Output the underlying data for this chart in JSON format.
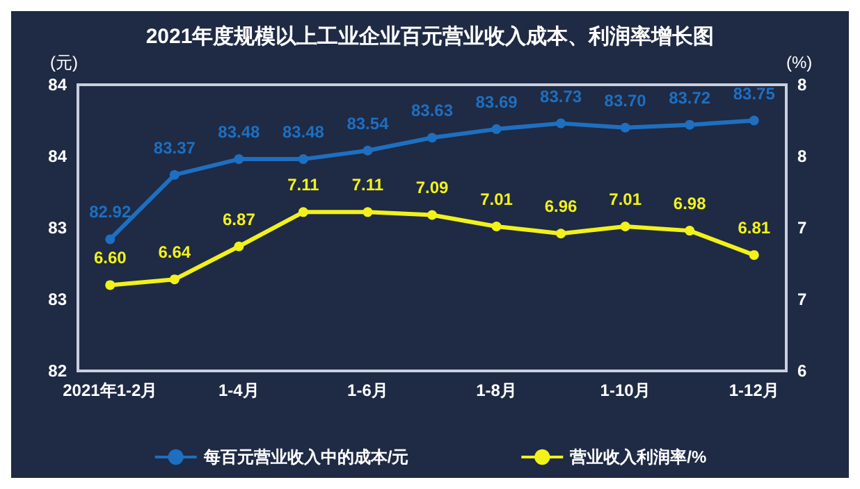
{
  "chart_data": {
    "type": "line",
    "title": "2021年度规模以上工业企业百元营业收入成本、利润率增长图",
    "ylabel": "(元)",
    "y2label": "(%)",
    "categories": [
      "2021年1-2月",
      null,
      "1-4月",
      null,
      "1-6月",
      null,
      "1-8月",
      null,
      "1-10月",
      null,
      "1-12月"
    ],
    "series": [
      {
        "name": "每百元营业收入中的成本/元",
        "color": "#1e6fc0",
        "values": [
          82.92,
          83.37,
          83.48,
          83.48,
          83.54,
          83.63,
          83.69,
          83.73,
          83.7,
          83.72,
          83.75
        ],
        "value_labels": [
          "82.92",
          "83.37",
          "83.48",
          "83.48",
          "83.54",
          "83.63",
          "83.69",
          "83.73",
          "83.70",
          "83.72",
          "83.75"
        ]
      },
      {
        "name": "营业收入利润率/%",
        "color": "#f2f21a",
        "axis": "y2",
        "values": [
          6.6,
          6.64,
          6.87,
          7.11,
          7.11,
          7.09,
          7.01,
          6.96,
          7.01,
          6.98,
          6.81
        ],
        "value_labels": [
          "6.60",
          "6.64",
          "6.87",
          "7.11",
          "7.11",
          "7.09",
          "7.01",
          "6.96",
          "7.01",
          "6.98",
          "6.81"
        ]
      }
    ],
    "ylim": [
      82,
      84
    ],
    "yticks": [
      82,
      {
        "value": 82.5,
        "label": "83"
      },
      83,
      {
        "value": 83.5,
        "label": "84"
      },
      84
    ],
    "y2lim": [
      6,
      8
    ],
    "y2ticks": [
      6,
      {
        "value": 6.5,
        "label": "7"
      },
      7,
      {
        "value": 7.5,
        "label": "8"
      },
      8
    ],
    "legend": "bottom",
    "grid": false,
    "marker": "circle",
    "line_style": "solid"
  }
}
